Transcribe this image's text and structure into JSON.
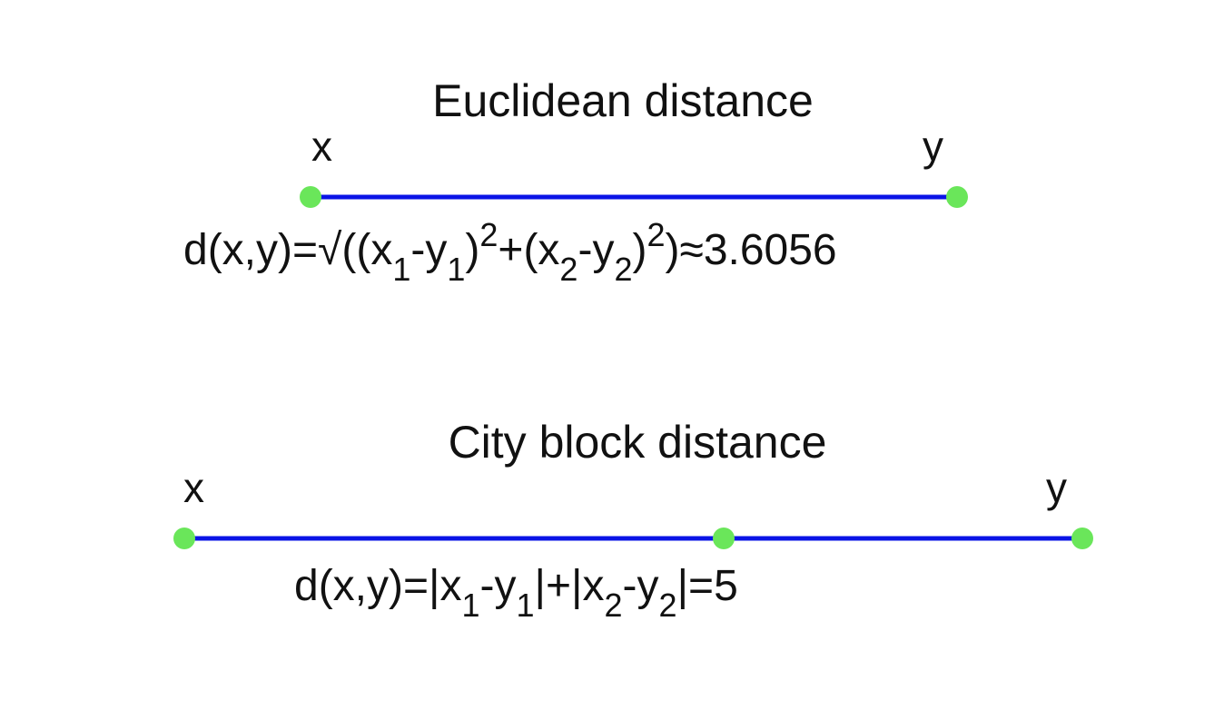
{
  "colors": {
    "line": "#0a14e6",
    "point": "#6ae65a",
    "text": "#111111",
    "background": "#ffffff"
  },
  "euclidean": {
    "title": "Euclidean distance",
    "x_label": "x",
    "y_label": "y",
    "formula": {
      "lhs": "d(x,y)=√((x",
      "s1": "1",
      "m1": "-y",
      "s2": "1",
      "m2": ")",
      "p1": "2",
      "m3": "+(x",
      "s3": "2",
      "m4": "-y",
      "s4": "2",
      "m5": ")",
      "p2": "2",
      "rhs": ")≈3.6056"
    }
  },
  "city_block": {
    "title": "City block distance",
    "x_label": "x",
    "y_label": "y",
    "formula": {
      "lhs": "d(x,y)=|x",
      "s1": "1",
      "m1": "-y",
      "s2": "1",
      "m2": "|+|x",
      "s3": "2",
      "m3": "-y",
      "s4": "2",
      "rhs": "|=5"
    }
  }
}
